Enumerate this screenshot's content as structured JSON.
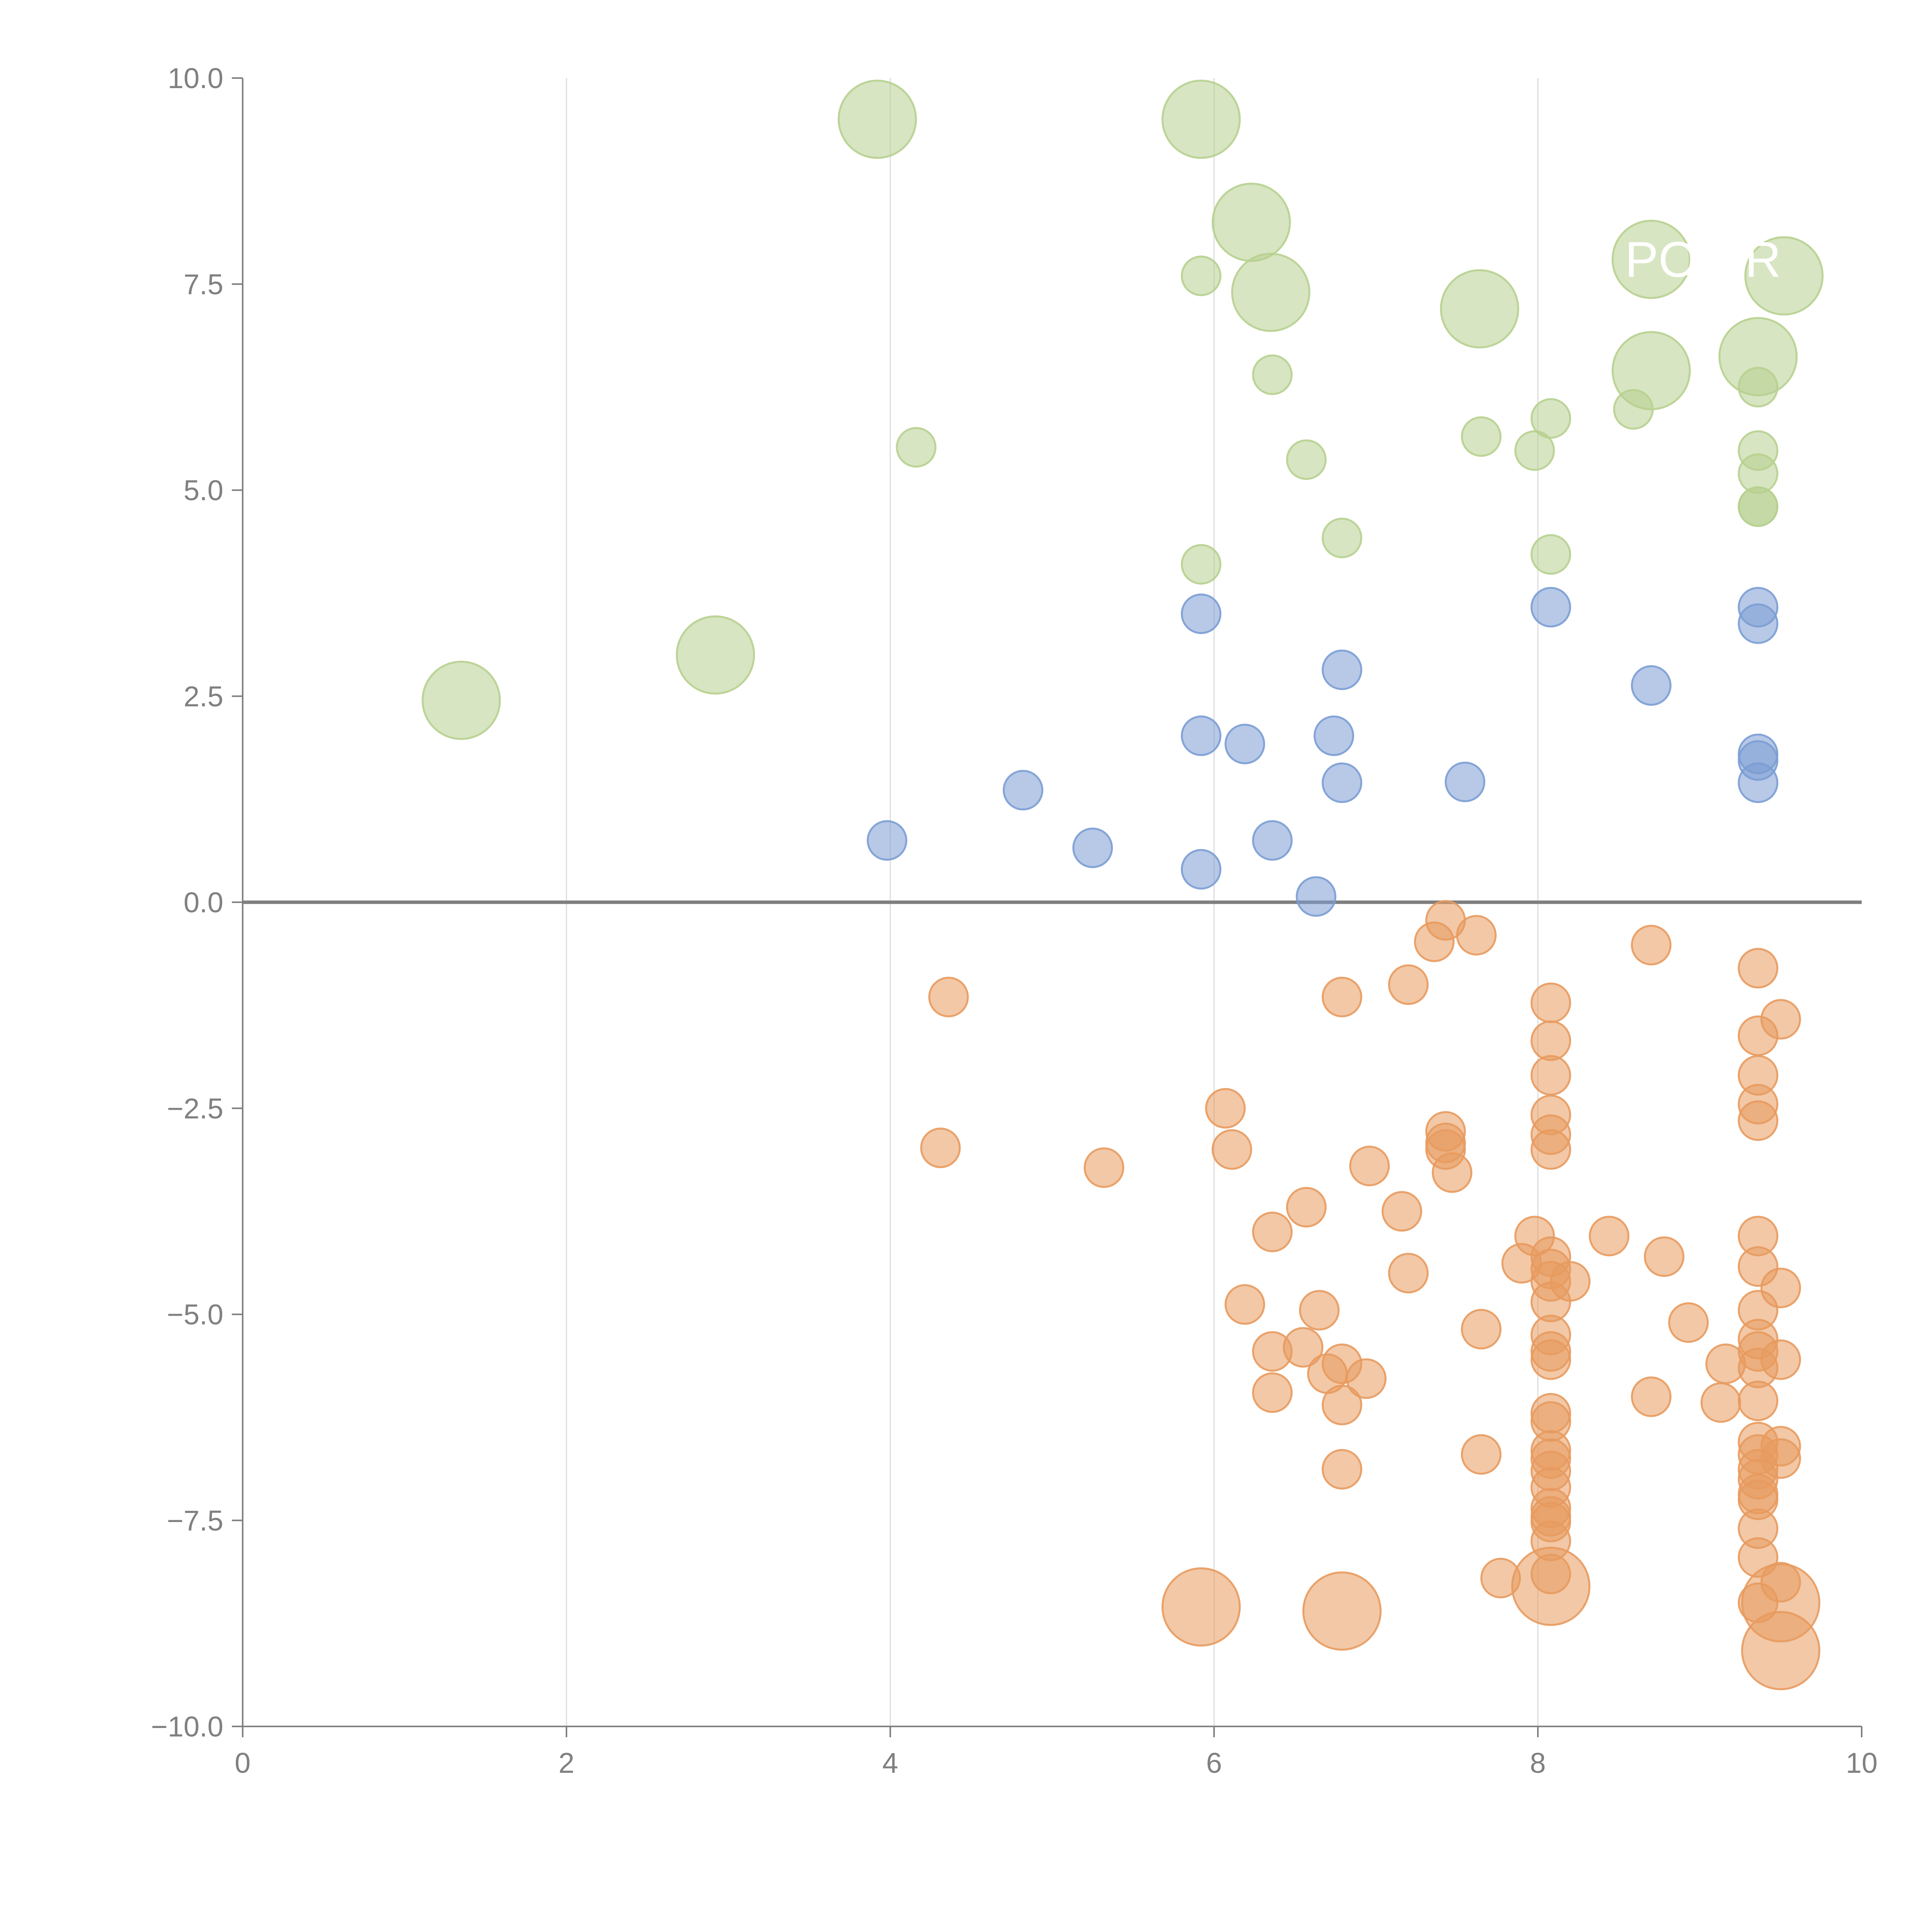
{
  "chart_data": {
    "type": "scatter",
    "title": "",
    "xlabel": "",
    "ylabel": "",
    "xlim": [
      0,
      10
    ],
    "ylim": [
      -10,
      10
    ],
    "grid": "vertical",
    "zero_line": 0,
    "xticks": [
      "0",
      "2",
      "4",
      "6",
      "8",
      "10"
    ],
    "yticks": [
      "10.0",
      "7.5",
      "5.0",
      "2.5",
      "0.0",
      "−2.5",
      "−5.0",
      "−7.5",
      "−10.0"
    ],
    "colors": {
      "green": "#b7d08f",
      "blue": "#7b9dd4",
      "orange": "#e89a5e",
      "axis": "#7f7f7f",
      "grid": "#dcdcdc"
    },
    "annotations": [
      {
        "text": "POWR",
        "x": 9.02,
        "y": 7.8
      }
    ],
    "series": [
      {
        "name": "green",
        "color": "#b7d08f",
        "points": [
          [
            3.92,
            9.5,
            2
          ],
          [
            5.92,
            9.5,
            2
          ],
          [
            6.23,
            8.25,
            2
          ],
          [
            6.35,
            7.4,
            2
          ],
          [
            7.64,
            7.2,
            2
          ],
          [
            8.7,
            7.8,
            2
          ],
          [
            9.52,
            7.6,
            2
          ],
          [
            8.7,
            6.45,
            2
          ],
          [
            9.36,
            6.62,
            2
          ],
          [
            5.92,
            7.6,
            1
          ],
          [
            6.36,
            6.4,
            1
          ],
          [
            9.36,
            6.25,
            1
          ],
          [
            4.16,
            5.52,
            1
          ],
          [
            6.57,
            5.37,
            1
          ],
          [
            7.65,
            5.65,
            1
          ],
          [
            7.98,
            5.48,
            1
          ],
          [
            8.08,
            5.87,
            1
          ],
          [
            8.59,
            5.98,
            1
          ],
          [
            9.36,
            5.48,
            1
          ],
          [
            9.36,
            5.2,
            1
          ],
          [
            9.36,
            4.8,
            1
          ],
          [
            9.36,
            4.8,
            1
          ],
          [
            6.79,
            4.42,
            1
          ],
          [
            8.08,
            4.22,
            1
          ],
          [
            5.92,
            4.1,
            1
          ],
          [
            1.35,
            2.45,
            2
          ],
          [
            2.92,
            3.0,
            2
          ]
        ]
      },
      {
        "name": "blue",
        "color": "#7b9dd4",
        "points": [
          [
            5.92,
            3.5,
            1
          ],
          [
            8.08,
            3.58,
            1
          ],
          [
            9.36,
            3.58,
            1
          ],
          [
            9.36,
            3.38,
            1
          ],
          [
            6.79,
            2.82,
            1
          ],
          [
            8.7,
            2.63,
            1
          ],
          [
            5.92,
            2.02,
            1
          ],
          [
            6.19,
            1.92,
            1
          ],
          [
            6.74,
            2.02,
            1
          ],
          [
            9.36,
            1.8,
            1
          ],
          [
            9.36,
            1.72,
            1
          ],
          [
            9.36,
            1.45,
            1
          ],
          [
            6.79,
            1.45,
            1
          ],
          [
            7.55,
            1.46,
            1
          ],
          [
            4.82,
            1.36,
            1
          ],
          [
            3.98,
            0.75,
            1
          ],
          [
            5.25,
            0.66,
            1
          ],
          [
            6.36,
            0.75,
            1
          ],
          [
            5.92,
            0.4,
            1
          ],
          [
            6.63,
            0.07,
            1
          ]
        ]
      },
      {
        "name": "orange",
        "color": "#e89a5e",
        "points": [
          [
            7.43,
            -0.22,
            1
          ],
          [
            7.36,
            -0.48,
            1
          ],
          [
            7.62,
            -0.4,
            1
          ],
          [
            8.7,
            -0.52,
            1
          ],
          [
            4.36,
            -1.15,
            1
          ],
          [
            6.79,
            -1.15,
            1
          ],
          [
            7.2,
            -1.0,
            1
          ],
          [
            8.08,
            -1.22,
            1
          ],
          [
            9.36,
            -0.8,
            1
          ],
          [
            9.5,
            -1.42,
            1
          ],
          [
            8.08,
            -1.68,
            1
          ],
          [
            9.36,
            -1.62,
            1
          ],
          [
            8.08,
            -2.1,
            1
          ],
          [
            9.36,
            -2.1,
            1
          ],
          [
            6.07,
            -2.5,
            1
          ],
          [
            8.08,
            -2.58,
            1
          ],
          [
            9.36,
            -2.45,
            1
          ],
          [
            9.36,
            -2.65,
            1
          ],
          [
            4.31,
            -2.98,
            1
          ],
          [
            5.32,
            -3.22,
            1
          ],
          [
            6.11,
            -3.0,
            1
          ],
          [
            6.96,
            -3.2,
            1
          ],
          [
            7.43,
            -2.78,
            1
          ],
          [
            7.43,
            -2.92,
            1
          ],
          [
            7.43,
            -3.0,
            1
          ],
          [
            7.47,
            -3.28,
            1
          ],
          [
            8.08,
            -2.82,
            1
          ],
          [
            8.08,
            -3.0,
            1
          ],
          [
            6.57,
            -3.7,
            1
          ],
          [
            7.16,
            -3.75,
            1
          ],
          [
            6.36,
            -4.0,
            1
          ],
          [
            7.2,
            -4.5,
            1
          ],
          [
            7.98,
            -4.05,
            1
          ],
          [
            7.9,
            -4.38,
            1
          ],
          [
            8.08,
            -4.3,
            1
          ],
          [
            8.08,
            -4.45,
            1
          ],
          [
            8.08,
            -4.6,
            1
          ],
          [
            8.2,
            -4.6,
            1
          ],
          [
            8.44,
            -4.05,
            1
          ],
          [
            8.78,
            -4.3,
            1
          ],
          [
            9.36,
            -4.05,
            1
          ],
          [
            9.36,
            -4.42,
            1
          ],
          [
            9.5,
            -4.68,
            1
          ],
          [
            6.19,
            -4.88,
            1
          ],
          [
            6.65,
            -4.95,
            1
          ],
          [
            8.08,
            -4.85,
            1
          ],
          [
            7.65,
            -5.18,
            1
          ],
          [
            8.93,
            -5.1,
            1
          ],
          [
            9.36,
            -4.95,
            1
          ],
          [
            6.36,
            -5.45,
            1
          ],
          [
            6.55,
            -5.4,
            1
          ],
          [
            6.79,
            -5.6,
            1
          ],
          [
            8.08,
            -5.25,
            1
          ],
          [
            8.08,
            -5.45,
            1
          ],
          [
            8.08,
            -5.55,
            1
          ],
          [
            9.36,
            -5.3,
            1
          ],
          [
            9.36,
            -5.45,
            1
          ],
          [
            9.36,
            -5.65,
            1
          ],
          [
            9.5,
            -5.55,
            1
          ],
          [
            9.16,
            -5.6,
            1
          ],
          [
            6.36,
            -5.95,
            1
          ],
          [
            6.7,
            -5.72,
            1
          ],
          [
            6.94,
            -5.78,
            1
          ],
          [
            6.79,
            -6.1,
            1
          ],
          [
            8.7,
            -6.0,
            1
          ],
          [
            9.13,
            -6.07,
            1
          ],
          [
            9.36,
            -6.05,
            1
          ],
          [
            8.08,
            -6.2,
            1
          ],
          [
            8.08,
            -6.3,
            1
          ],
          [
            9.36,
            -6.55,
            1
          ],
          [
            9.36,
            -6.7,
            1
          ],
          [
            9.5,
            -6.6,
            1
          ],
          [
            9.5,
            -6.75,
            1
          ],
          [
            7.65,
            -6.7,
            1
          ],
          [
            8.08,
            -6.65,
            1
          ],
          [
            8.08,
            -6.75,
            1
          ],
          [
            8.08,
            -6.9,
            1
          ],
          [
            6.79,
            -6.88,
            1
          ],
          [
            8.08,
            -7.1,
            1
          ],
          [
            9.36,
            -6.88,
            1
          ],
          [
            9.36,
            -7.0,
            1
          ],
          [
            9.36,
            -7.18,
            1
          ],
          [
            9.36,
            -7.25,
            1
          ],
          [
            8.08,
            -7.35,
            1
          ],
          [
            8.08,
            -7.45,
            1
          ],
          [
            8.08,
            -7.52,
            1
          ],
          [
            9.36,
            -7.6,
            1
          ],
          [
            8.08,
            -7.75,
            1
          ],
          [
            9.36,
            -7.95,
            1
          ],
          [
            7.77,
            -8.2,
            1
          ],
          [
            8.08,
            -8.15,
            1
          ],
          [
            9.5,
            -8.25,
            1
          ],
          [
            9.36,
            -8.5,
            1
          ],
          [
            5.92,
            -8.55,
            2
          ],
          [
            6.79,
            -8.6,
            2
          ],
          [
            8.08,
            -8.3,
            2
          ],
          [
            9.5,
            -8.5,
            2
          ],
          [
            9.5,
            -9.08,
            2
          ]
        ]
      }
    ]
  }
}
